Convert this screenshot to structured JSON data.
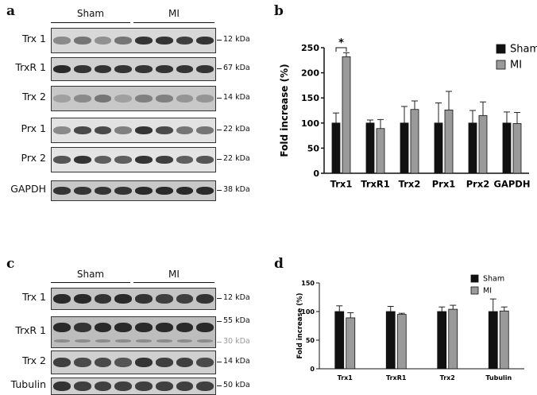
{
  "panels": {
    "a": {
      "letter": "a",
      "groups": [
        {
          "label": "Sham"
        },
        {
          "label": "MI"
        }
      ],
      "rows": [
        {
          "label": "Trx 1",
          "kda": "12 kDa",
          "bands": [
            0.45,
            0.55,
            0.42,
            0.55,
            0.85,
            0.85,
            0.8,
            0.85
          ],
          "bg": "#d8d8d8"
        },
        {
          "label": "TrxR 1",
          "kda": "67 kDa",
          "bands": [
            0.9,
            0.85,
            0.85,
            0.85,
            0.85,
            0.85,
            0.85,
            0.85
          ],
          "bg": "#d0d0d0"
        },
        {
          "label": "Trx 2",
          "kda": "14 kDa",
          "bands": [
            0.35,
            0.45,
            0.55,
            0.35,
            0.5,
            0.5,
            0.4,
            0.4
          ],
          "bg": "#c8c8c8"
        },
        {
          "label": "Prx 1",
          "kda": "22 kDa",
          "bands": [
            0.45,
            0.75,
            0.75,
            0.5,
            0.85,
            0.75,
            0.55,
            0.55
          ],
          "bg": "#e2e2e2"
        },
        {
          "label": "Prx 2",
          "kda": "22 kDa",
          "bands": [
            0.7,
            0.85,
            0.65,
            0.65,
            0.85,
            0.8,
            0.65,
            0.7
          ],
          "bg": "#e4e4e4"
        },
        {
          "label": "GAPDH",
          "kda": "38 kDa",
          "bands": [
            0.85,
            0.85,
            0.85,
            0.85,
            0.9,
            0.9,
            0.9,
            0.9
          ],
          "bg": "#c8c8c8"
        }
      ]
    },
    "b": {
      "letter": "b",
      "significance": "*"
    },
    "c": {
      "letter": "c",
      "groups": [
        {
          "label": "Sham"
        },
        {
          "label": "MI"
        }
      ],
      "rows": [
        {
          "label": "Trx 1",
          "kda": [
            "12 kDa"
          ],
          "bands": [
            0.9,
            0.9,
            0.85,
            0.9,
            0.85,
            0.8,
            0.8,
            0.85
          ],
          "bg": "#c4c4c4"
        },
        {
          "label": "TrxR 1",
          "kda": [
            "55 kDa",
            "30 kDa"
          ],
          "bands": [
            0.9,
            0.85,
            0.9,
            0.9,
            0.9,
            0.9,
            0.9,
            0.9
          ],
          "bg": "#bdbdbd"
        },
        {
          "label": "Trx 2",
          "kda": [
            "14 kDa"
          ],
          "bands": [
            0.8,
            0.75,
            0.75,
            0.7,
            0.85,
            0.8,
            0.8,
            0.75
          ],
          "bg": "#d0d0d0"
        },
        {
          "label": "Tubulin",
          "kda": [
            "50 kDa"
          ],
          "bands": [
            0.85,
            0.8,
            0.8,
            0.8,
            0.8,
            0.8,
            0.8,
            0.8
          ],
          "bg": "#cfcfcf"
        }
      ]
    },
    "d": {
      "letter": "d"
    }
  },
  "chart_data": [
    {
      "type": "bar",
      "panel": "b",
      "categories": [
        "Trx1",
        "TrxR1",
        "Trx2",
        "Prx1",
        "Prx2",
        "GAPDH"
      ],
      "series": [
        {
          "name": "Sham",
          "values": [
            100,
            100,
            100,
            100,
            100,
            100
          ],
          "errors": [
            20,
            6,
            33,
            40,
            25,
            22
          ],
          "color": "#111111"
        },
        {
          "name": "MI",
          "values": [
            232,
            89,
            127,
            126,
            115,
            99
          ],
          "errors": [
            8,
            18,
            17,
            37,
            27,
            22
          ],
          "color": "#9a9a9a"
        }
      ],
      "ylabel": "Fold increase (%)",
      "ylim": [
        0,
        250
      ],
      "yticks": [
        0,
        50,
        100,
        150,
        200,
        250
      ],
      "legend": "top-right",
      "grid": false
    },
    {
      "type": "bar",
      "panel": "d",
      "categories": [
        "Trx1",
        "TrxR1",
        "Trx2",
        "Tubulin"
      ],
      "series": [
        {
          "name": "Sham",
          "values": [
            100,
            100,
            100,
            100
          ],
          "errors": [
            10,
            9,
            8,
            22
          ],
          "color": "#111111"
        },
        {
          "name": "MI",
          "values": [
            89,
            95,
            104,
            101
          ],
          "errors": [
            9,
            2,
            7,
            7
          ],
          "color": "#9a9a9a"
        }
      ],
      "ylabel": "Fold increase (%)",
      "ylim": [
        0,
        150
      ],
      "yticks": [
        0,
        50,
        100,
        150
      ],
      "legend": "top-right",
      "grid": false
    }
  ]
}
